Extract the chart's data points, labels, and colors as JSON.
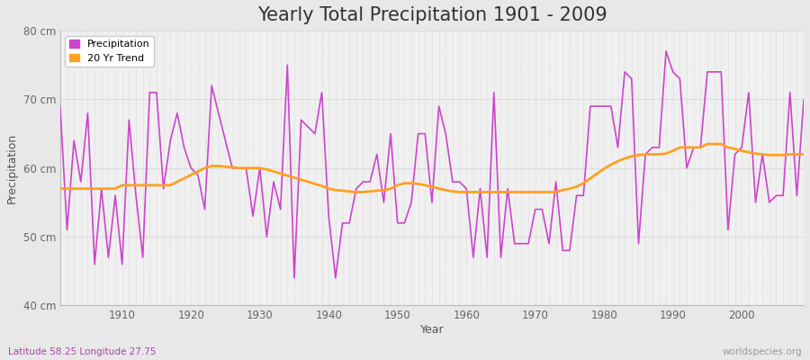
{
  "title": "Yearly Total Precipitation 1901 - 2009",
  "xlabel": "Year",
  "ylabel": "Precipitation",
  "subtitle": "Latitude 58.25 Longitude 27.75",
  "watermark": "worldspecies.org",
  "years": [
    1901,
    1902,
    1903,
    1904,
    1905,
    1906,
    1907,
    1908,
    1909,
    1910,
    1911,
    1912,
    1913,
    1914,
    1915,
    1916,
    1917,
    1918,
    1919,
    1920,
    1921,
    1922,
    1923,
    1924,
    1925,
    1926,
    1927,
    1928,
    1929,
    1930,
    1931,
    1932,
    1933,
    1934,
    1935,
    1936,
    1937,
    1938,
    1939,
    1940,
    1941,
    1942,
    1943,
    1944,
    1945,
    1946,
    1947,
    1948,
    1949,
    1950,
    1951,
    1952,
    1953,
    1954,
    1955,
    1956,
    1957,
    1958,
    1959,
    1960,
    1961,
    1962,
    1963,
    1964,
    1965,
    1966,
    1967,
    1968,
    1969,
    1970,
    1971,
    1972,
    1973,
    1974,
    1975,
    1976,
    1977,
    1978,
    1979,
    1980,
    1981,
    1982,
    1983,
    1984,
    1985,
    1986,
    1987,
    1988,
    1989,
    1990,
    1991,
    1992,
    1993,
    1994,
    1995,
    1996,
    1997,
    1998,
    1999,
    2000,
    2001,
    2002,
    2003,
    2004,
    2005,
    2006,
    2007,
    2008,
    2009
  ],
  "precipitation": [
    69,
    51,
    64,
    58,
    68,
    46,
    57,
    47,
    56,
    46,
    67,
    56,
    47,
    71,
    71,
    57,
    64,
    68,
    63,
    60,
    59,
    54,
    72,
    68,
    64,
    60,
    60,
    60,
    53,
    60,
    50,
    58,
    54,
    75,
    44,
    67,
    66,
    65,
    71,
    53,
    44,
    52,
    52,
    57,
    58,
    58,
    62,
    55,
    65,
    52,
    52,
    55,
    65,
    65,
    55,
    69,
    65,
    58,
    58,
    57,
    47,
    57,
    47,
    71,
    47,
    57,
    49,
    49,
    49,
    54,
    54,
    49,
    58,
    48,
    48,
    56,
    56,
    69,
    69,
    69,
    69,
    63,
    74,
    73,
    49,
    62,
    63,
    63,
    77,
    74,
    73,
    60,
    63,
    63,
    74,
    74,
    74,
    51,
    62,
    63,
    71,
    55,
    62,
    55,
    56,
    56,
    71,
    56,
    70
  ],
  "trend": [
    57.0,
    57.0,
    57.0,
    57.0,
    57.0,
    57.0,
    57.0,
    57.0,
    57.0,
    57.5,
    57.5,
    57.5,
    57.5,
    57.5,
    57.5,
    57.5,
    57.5,
    58.0,
    58.5,
    59.0,
    59.5,
    60.0,
    60.3,
    60.3,
    60.2,
    60.1,
    60.0,
    60.0,
    60.0,
    60.0,
    59.8,
    59.5,
    59.2,
    58.9,
    58.6,
    58.3,
    58.0,
    57.7,
    57.4,
    57.0,
    56.8,
    56.7,
    56.6,
    56.5,
    56.5,
    56.6,
    56.7,
    56.8,
    57.0,
    57.5,
    57.8,
    57.8,
    57.7,
    57.5,
    57.3,
    57.0,
    56.8,
    56.6,
    56.5,
    56.5,
    56.5,
    56.5,
    56.5,
    56.5,
    56.5,
    56.5,
    56.5,
    56.5,
    56.5,
    56.5,
    56.5,
    56.5,
    56.5,
    56.8,
    57.0,
    57.3,
    57.8,
    58.5,
    59.2,
    59.9,
    60.5,
    61.0,
    61.4,
    61.7,
    61.9,
    62.0,
    62.0,
    62.0,
    62.1,
    62.5,
    63.0,
    63.0,
    63.0,
    63.0,
    63.5,
    63.5,
    63.5,
    63.0,
    62.8,
    62.5,
    62.3,
    62.1,
    62.0,
    61.9,
    61.9,
    61.9,
    62.0,
    62.0,
    62.0
  ],
  "ylim": [
    40,
    80
  ],
  "yticks": [
    40,
    50,
    60,
    70,
    80
  ],
  "ytick_labels": [
    "40 cm",
    "50 cm",
    "60 cm",
    "70 cm",
    "80 cm"
  ],
  "precipitation_color": "#CC44CC",
  "trend_color": "#FFA020",
  "fig_bg_color": "#E8E8E8",
  "plot_bg_color": "#F0F0F0",
  "grid_color_h": "#DDDDDD",
  "grid_color_v": "#CCCCCC",
  "title_fontsize": 15,
  "axis_label_fontsize": 9,
  "tick_fontsize": 8.5,
  "subtitle_color": "#AA44AA",
  "watermark_color": "#999999"
}
